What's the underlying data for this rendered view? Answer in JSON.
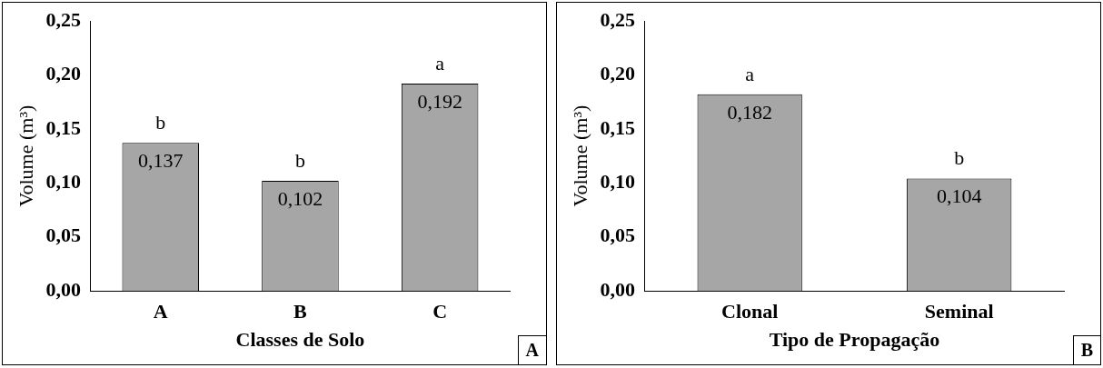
{
  "chart_data": [
    {
      "type": "bar",
      "xlabel": "Classes de Solo",
      "ylabel": "Volume (m³)",
      "categories": [
        "A",
        "B",
        "C"
      ],
      "values": [
        0.137,
        0.102,
        0.192
      ],
      "value_labels": [
        "0,137",
        "0,102",
        "0,192"
      ],
      "color": "#a6a6a6",
      "ylim": [
        0,
        0.25
      ],
      "yticks": [
        {
          "value": 0,
          "label": "0,00"
        },
        {
          "value": 0.05,
          "label": "0,05"
        },
        {
          "value": 0.1,
          "label": "0,10"
        },
        {
          "value": 0.15,
          "label": "0,15"
        },
        {
          "value": 0.2,
          "label": "0,20"
        },
        {
          "value": 0.25,
          "label": "0,25"
        }
      ],
      "grid": false,
      "legend": false,
      "annotations": [
        {
          "text": "b",
          "x": "A",
          "y": 0.137
        },
        {
          "text": "b",
          "x": "B",
          "y": 0.102
        },
        {
          "text": "a",
          "x": "C",
          "y": 0.192
        },
        "A"
      ]
    },
    {
      "type": "bar",
      "xlabel": "Tipo de Propagação",
      "ylabel": "Volume (m³)",
      "categories": [
        "Clonal",
        "Seminal"
      ],
      "values": [
        0.182,
        0.104
      ],
      "value_labels": [
        "0,182",
        "0,104"
      ],
      "color": "#a6a6a6",
      "ylim": [
        0,
        0.25
      ],
      "yticks": [
        {
          "value": 0,
          "label": "0,00"
        },
        {
          "value": 0.05,
          "label": "0,05"
        },
        {
          "value": 0.1,
          "label": "0,10"
        },
        {
          "value": 0.15,
          "label": "0,15"
        },
        {
          "value": 0.2,
          "label": "0,20"
        },
        {
          "value": 0.25,
          "label": "0,25"
        }
      ],
      "grid": false,
      "legend": false,
      "annotations": [
        {
          "text": "a",
          "x": "Clonal",
          "y": 0.182
        },
        {
          "text": "b",
          "x": "Seminal",
          "y": 0.104
        },
        "B"
      ]
    }
  ]
}
